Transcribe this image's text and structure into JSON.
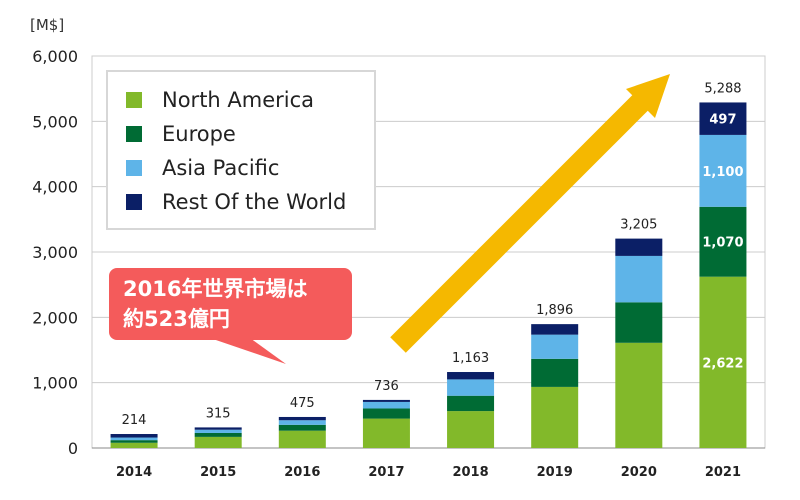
{
  "chart_data": {
    "type": "bar",
    "stacked": true,
    "unit_label": "[M$]",
    "ylim": [
      0,
      6000
    ],
    "yticks": [
      0,
      1000,
      2000,
      3000,
      4000,
      5000,
      6000
    ],
    "ytick_labels": [
      "0",
      "1,000",
      "2,000",
      "3,000",
      "4,000",
      "5,000",
      "6,000"
    ],
    "grid": true,
    "legend_position": "top-left",
    "categories": [
      "2014",
      "2015",
      "2016",
      "2017",
      "2018",
      "2019",
      "2020",
      "2021"
    ],
    "series": [
      {
        "name": "North America",
        "color": "#82b92a",
        "values": [
          80,
          170,
          265,
          450,
          565,
          935,
          1610,
          2622
        ]
      },
      {
        "name": "Europe",
        "color": "#006b34",
        "values": [
          40,
          60,
          90,
          155,
          235,
          430,
          620,
          1070
        ]
      },
      {
        "name": "Asia Pacific",
        "color": "#5eb4e8",
        "values": [
          40,
          50,
          70,
          100,
          250,
          370,
          710,
          1100
        ]
      },
      {
        "name": "Rest Of the World",
        "color": "#0b1f66",
        "values": [
          54,
          35,
          50,
          31,
          113,
          161,
          265,
          497
        ]
      }
    ],
    "totals": [
      214,
      315,
      475,
      736,
      1163,
      1896,
      3205,
      5288
    ],
    "total_labels": [
      "214",
      "315",
      "475",
      "736",
      "1,163",
      "1,896",
      "3,205",
      "5,288"
    ],
    "segment_labels_2021": [
      "2,622",
      "1,070",
      "1,100",
      "497"
    ]
  },
  "annotation": {
    "line1": "2016年世界市場は",
    "line2": "約523億円",
    "color": "#f45b5b"
  },
  "arrow_color": "#f5b800"
}
